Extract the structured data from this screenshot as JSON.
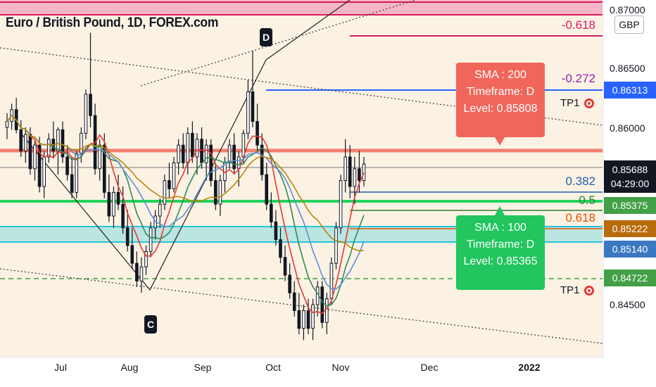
{
  "chart_data": {
    "type": "candlestick",
    "title": "Euro / British Pound, 1D, FOREX.com",
    "currency": "GBP",
    "x_ticks": [
      "Jul",
      "Aug",
      "Sep",
      "Oct",
      "Nov",
      "Dec",
      "2022"
    ],
    "y_ticks": [
      "0.87000",
      "0.86500",
      "0.86000",
      "0.84500"
    ],
    "ylim": [
      0.841,
      0.8702
    ],
    "last_price": "0.85688",
    "countdown": "04:29:00",
    "price_tags": [
      {
        "value": "0.86313",
        "color": "#2962ff"
      },
      {
        "value": "0.85375",
        "color": "#43a047"
      },
      {
        "value": "0.85222",
        "color": "#b86b0b"
      },
      {
        "value": "0.85140",
        "color": "#3b78c2"
      },
      {
        "value": "0.84722",
        "color": "#43a047"
      }
    ],
    "fib_levels": [
      {
        "label": "-0.618",
        "color": "#d81b60"
      },
      {
        "label": "-0.272",
        "color": "#8e24aa"
      },
      {
        "label": "0.382",
        "color": "#1e5fa8"
      },
      {
        "label": "0.5",
        "color": "#2e7d32"
      },
      {
        "label": "0.618",
        "color": "#e65100"
      }
    ],
    "callouts": [
      {
        "lines": [
          "SMA : 200",
          "Timeframe: D",
          "Level: 0.85808"
        ],
        "color": "#f0665a"
      },
      {
        "lines": [
          "SMA : 100",
          "Timeframe: D",
          "Level: 0.85365"
        ],
        "color": "#22c55e"
      }
    ],
    "wave_labels": [
      "D",
      "C"
    ],
    "tp_labels": [
      "TP1",
      "TP1"
    ],
    "candles": [
      [
        0.86,
        0.8612,
        0.859,
        0.8605
      ],
      [
        0.8605,
        0.862,
        0.8598,
        0.8615
      ],
      [
        0.8615,
        0.8625,
        0.8595,
        0.8598
      ],
      [
        0.8598,
        0.8606,
        0.8575,
        0.858
      ],
      [
        0.858,
        0.86,
        0.857,
        0.8594
      ],
      [
        0.8594,
        0.86,
        0.856,
        0.8565
      ],
      [
        0.8565,
        0.859,
        0.8555,
        0.8585
      ],
      [
        0.8585,
        0.8592,
        0.8545,
        0.855
      ],
      [
        0.855,
        0.858,
        0.854,
        0.8575
      ],
      [
        0.8575,
        0.8595,
        0.857,
        0.859
      ],
      [
        0.859,
        0.8605,
        0.8575,
        0.858
      ],
      [
        0.858,
        0.86,
        0.856,
        0.8598
      ],
      [
        0.8598,
        0.8605,
        0.857,
        0.8575
      ],
      [
        0.8575,
        0.8585,
        0.8555,
        0.856
      ],
      [
        0.856,
        0.8575,
        0.854,
        0.8545
      ],
      [
        0.8545,
        0.858,
        0.854,
        0.8578
      ],
      [
        0.8578,
        0.86,
        0.857,
        0.8595
      ],
      [
        0.8595,
        0.8632,
        0.859,
        0.8628
      ],
      [
        0.8628,
        0.868,
        0.86,
        0.861
      ],
      [
        0.861,
        0.862,
        0.856,
        0.8565
      ],
      [
        0.8565,
        0.859,
        0.8555,
        0.8585
      ],
      [
        0.8585,
        0.8595,
        0.854,
        0.8545
      ],
      [
        0.8545,
        0.856,
        0.852,
        0.8525
      ],
      [
        0.8525,
        0.855,
        0.8515,
        0.8545
      ],
      [
        0.8545,
        0.856,
        0.853,
        0.8535
      ],
      [
        0.8535,
        0.855,
        0.851,
        0.8515
      ],
      [
        0.8515,
        0.853,
        0.8495,
        0.85
      ],
      [
        0.85,
        0.8515,
        0.848,
        0.8485
      ],
      [
        0.8485,
        0.8495,
        0.8465,
        0.847
      ],
      [
        0.847,
        0.849,
        0.846,
        0.8482
      ],
      [
        0.8482,
        0.85,
        0.8475,
        0.8495
      ],
      [
        0.8495,
        0.852,
        0.849,
        0.8515
      ],
      [
        0.8515,
        0.853,
        0.8505,
        0.8525
      ],
      [
        0.8525,
        0.854,
        0.8515,
        0.8535
      ],
      [
        0.8535,
        0.856,
        0.853,
        0.8555
      ],
      [
        0.8555,
        0.857,
        0.854,
        0.8548
      ],
      [
        0.8548,
        0.8575,
        0.8545,
        0.857
      ],
      [
        0.857,
        0.859,
        0.856,
        0.8585
      ],
      [
        0.8585,
        0.8595,
        0.8565,
        0.857
      ],
      [
        0.857,
        0.86,
        0.856,
        0.8595
      ],
      [
        0.8595,
        0.8605,
        0.857,
        0.8575
      ],
      [
        0.8575,
        0.8595,
        0.856,
        0.859
      ],
      [
        0.859,
        0.86,
        0.8565,
        0.857
      ],
      [
        0.857,
        0.859,
        0.8555,
        0.8585
      ],
      [
        0.8585,
        0.859,
        0.855,
        0.8555
      ],
      [
        0.8555,
        0.857,
        0.853,
        0.8535
      ],
      [
        0.8535,
        0.856,
        0.8525,
        0.8555
      ],
      [
        0.8555,
        0.8575,
        0.8545,
        0.857
      ],
      [
        0.857,
        0.859,
        0.8565,
        0.8585
      ],
      [
        0.8585,
        0.8595,
        0.856,
        0.8565
      ],
      [
        0.8565,
        0.858,
        0.855,
        0.8575
      ],
      [
        0.8575,
        0.8598,
        0.857,
        0.8595
      ],
      [
        0.8595,
        0.864,
        0.859,
        0.863
      ],
      [
        0.863,
        0.8665,
        0.86,
        0.8605
      ],
      [
        0.8605,
        0.862,
        0.858,
        0.8585
      ],
      [
        0.8585,
        0.8595,
        0.8555,
        0.856
      ],
      [
        0.856,
        0.857,
        0.853,
        0.8535
      ],
      [
        0.8535,
        0.8545,
        0.8515,
        0.852
      ],
      [
        0.852,
        0.853,
        0.85,
        0.8505
      ],
      [
        0.8505,
        0.8515,
        0.8485,
        0.849
      ],
      [
        0.849,
        0.85,
        0.847,
        0.8475
      ],
      [
        0.8475,
        0.8485,
        0.8455,
        0.846
      ],
      [
        0.846,
        0.847,
        0.844,
        0.8445
      ],
      [
        0.8445,
        0.846,
        0.8425,
        0.843
      ],
      [
        0.843,
        0.845,
        0.842,
        0.8445
      ],
      [
        0.8445,
        0.8455,
        0.8425,
        0.843
      ],
      [
        0.843,
        0.8455,
        0.842,
        0.845
      ],
      [
        0.845,
        0.847,
        0.844,
        0.8465
      ],
      [
        0.8465,
        0.847,
        0.843,
        0.8435
      ],
      [
        0.8435,
        0.846,
        0.8425,
        0.8455
      ],
      [
        0.8455,
        0.849,
        0.845,
        0.8485
      ],
      [
        0.8485,
        0.852,
        0.848,
        0.8515
      ],
      [
        0.8515,
        0.856,
        0.851,
        0.8555
      ],
      [
        0.8555,
        0.859,
        0.8545,
        0.8575
      ],
      [
        0.8575,
        0.8585,
        0.854,
        0.855
      ],
      [
        0.855,
        0.8575,
        0.8535,
        0.8565
      ],
      [
        0.8565,
        0.858,
        0.8545,
        0.8555
      ],
      [
        0.8555,
        0.8575,
        0.855,
        0.8569
      ]
    ]
  }
}
